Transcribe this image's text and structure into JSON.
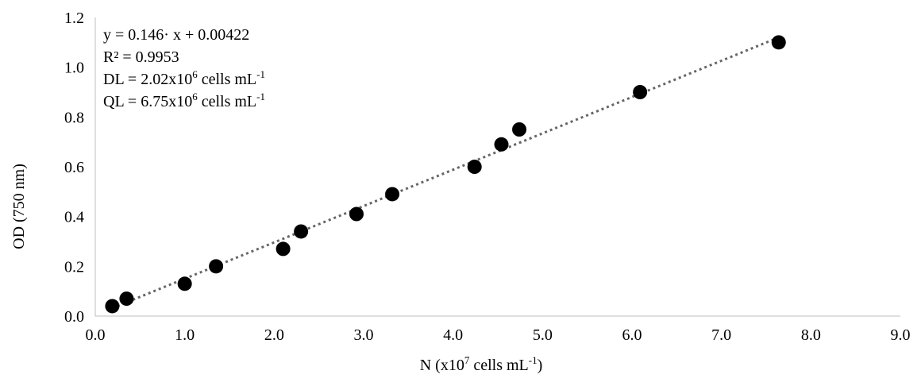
{
  "chart_data": {
    "type": "scatter",
    "title": "",
    "xlabel": {
      "base": "N (x10",
      "sup1": "7",
      "mid": " cells mL",
      "sup2": "-1",
      "end": ")"
    },
    "ylabel": "OD (750 nm)",
    "xlim": [
      0,
      9
    ],
    "ylim": [
      0,
      1.2
    ],
    "x_ticks": [
      "0.0",
      "1.0",
      "2.0",
      "3.0",
      "4.0",
      "5.0",
      "6.0",
      "7.0",
      "8.0",
      "9.0"
    ],
    "y_ticks": [
      "0.0",
      "0.2",
      "0.4",
      "0.6",
      "0.8",
      "1.0",
      "1.2"
    ],
    "grid": false,
    "marker_color": "#000000",
    "trendline_color": "#666666",
    "series": [
      {
        "points": [
          {
            "x": 0.19,
            "y": 0.04
          },
          {
            "x": 0.35,
            "y": 0.07
          },
          {
            "x": 1.0,
            "y": 0.13
          },
          {
            "x": 1.35,
            "y": 0.2
          },
          {
            "x": 2.1,
            "y": 0.27
          },
          {
            "x": 2.3,
            "y": 0.34
          },
          {
            "x": 2.92,
            "y": 0.41
          },
          {
            "x": 3.32,
            "y": 0.49
          },
          {
            "x": 4.24,
            "y": 0.6
          },
          {
            "x": 4.54,
            "y": 0.69
          },
          {
            "x": 4.74,
            "y": 0.75
          },
          {
            "x": 6.09,
            "y": 0.9
          },
          {
            "x": 7.64,
            "y": 1.1
          }
        ]
      }
    ],
    "trendline": {
      "slope": 0.146,
      "intercept": 0.00422,
      "x_start": 0.19,
      "x_end": 7.64
    },
    "annotations": {
      "equation": "y = 0.146· x + 0.00422",
      "r2": "R² = 0.9953",
      "dl": {
        "base": "DL = 2.02x10",
        "sup1": "6",
        "mid": " cells mL",
        "sup2": "-1"
      },
      "ql": {
        "base": "QL = 6.75x10",
        "sup1": "6",
        "mid": " cells mL",
        "sup2": "-1"
      }
    }
  }
}
